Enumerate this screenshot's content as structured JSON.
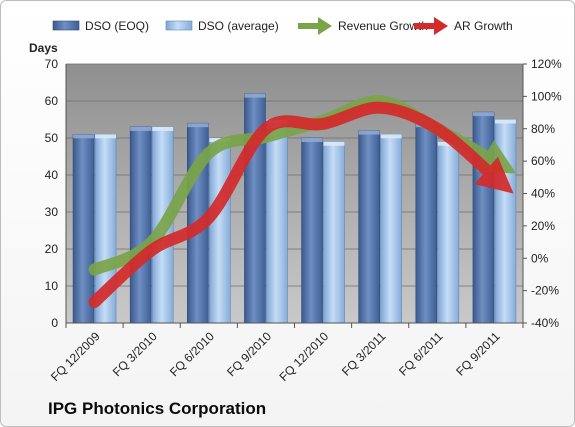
{
  "company": "IPG Photonics Corporation",
  "chart_data": {
    "type": "bar",
    "title": "",
    "categories": [
      "FQ 12/2009",
      "FQ 3/2010",
      "FQ 6/2010",
      "FQ 9/2010",
      "FQ 12/2010",
      "FQ 3/2011",
      "FQ 6/2011",
      "FQ 9/2011"
    ],
    "ylabel": "Days",
    "ylim": [
      0,
      70
    ],
    "yticks": [
      0,
      10,
      20,
      30,
      40,
      50,
      60,
      70
    ],
    "y2lim": [
      -40,
      120
    ],
    "y2ticks": [
      "-40%",
      "-20%",
      "0%",
      "20%",
      "40%",
      "60%",
      "80%",
      "100%",
      "120%"
    ],
    "legend_position": "top",
    "series": [
      {
        "name": "DSO (EOQ)",
        "type": "bar",
        "axis": "left",
        "color": "#4a6da5",
        "values": [
          51,
          53,
          54,
          62,
          50,
          52,
          54,
          57
        ]
      },
      {
        "name": "DSO (average)",
        "type": "bar",
        "axis": "left",
        "color": "#9fc2ea",
        "values": [
          51,
          53,
          50,
          55,
          49,
          51,
          49,
          55
        ]
      },
      {
        "name": "Revenue Growth",
        "type": "line",
        "axis": "right",
        "color": "#7aa44a",
        "values": [
          -7,
          10,
          65,
          75,
          85,
          97,
          80,
          60
        ]
      },
      {
        "name": "AR Growth",
        "type": "line",
        "axis": "right",
        "color": "#d42a2a",
        "values": [
          -27,
          5,
          25,
          80,
          83,
          93,
          80,
          50
        ]
      }
    ]
  }
}
